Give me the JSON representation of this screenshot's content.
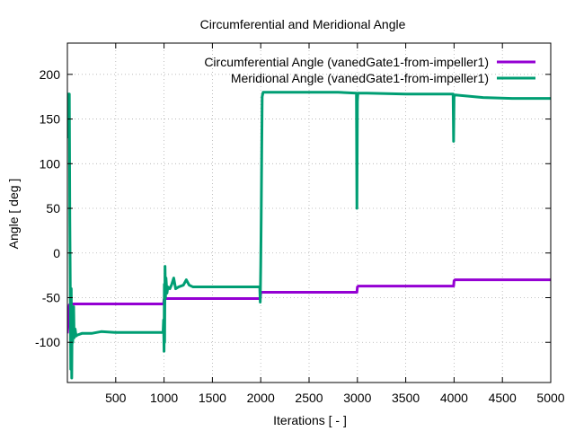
{
  "chart_data": {
    "type": "line",
    "title": "Circumferential and Meridional Angle",
    "xlabel": "Iterations [ - ]",
    "ylabel": "Angle [ deg ]",
    "xlim": [
      0,
      5000
    ],
    "ylim": [
      -145,
      235
    ],
    "xticks": [
      500,
      1000,
      1500,
      2000,
      2500,
      3000,
      3500,
      4000,
      4500,
      5000
    ],
    "yticks": [
      -100,
      -50,
      0,
      50,
      100,
      150,
      200
    ],
    "grid": true,
    "legend_position": "top-right",
    "series": [
      {
        "name": "Circumferential Angle (vanedGate1-from-impeller1)",
        "color": "#9400d3",
        "points": [
          [
            0,
            -90
          ],
          [
            10,
            -75
          ],
          [
            20,
            -58
          ],
          [
            40,
            -57
          ],
          [
            100,
            -57
          ],
          [
            300,
            -57
          ],
          [
            600,
            -57
          ],
          [
            900,
            -57
          ],
          [
            995,
            -57
          ],
          [
            1000,
            -52
          ],
          [
            1010,
            -51
          ],
          [
            1200,
            -51
          ],
          [
            1500,
            -51
          ],
          [
            1800,
            -51
          ],
          [
            1995,
            -51
          ],
          [
            2000,
            -45
          ],
          [
            2010,
            -44
          ],
          [
            2300,
            -44
          ],
          [
            2600,
            -44
          ],
          [
            2995,
            -44
          ],
          [
            3000,
            -38
          ],
          [
            3010,
            -37
          ],
          [
            3300,
            -37
          ],
          [
            3600,
            -37
          ],
          [
            3995,
            -37
          ],
          [
            4000,
            -31
          ],
          [
            4010,
            -30
          ],
          [
            4300,
            -30
          ],
          [
            4700,
            -30
          ],
          [
            5000,
            -30
          ]
        ]
      },
      {
        "name": "Meridional Angle (vanedGate1-from-impeller1)",
        "color": "#009e73",
        "points": [
          [
            0,
            170
          ],
          [
            3,
            178
          ],
          [
            6,
            130
          ],
          [
            10,
            178
          ],
          [
            20,
            178
          ],
          [
            25,
            40
          ],
          [
            30,
            -40
          ],
          [
            35,
            -130
          ],
          [
            40,
            -40
          ],
          [
            45,
            -140
          ],
          [
            50,
            -65
          ],
          [
            55,
            -100
          ],
          [
            60,
            -80
          ],
          [
            65,
            -60
          ],
          [
            70,
            -95
          ],
          [
            80,
            -85
          ],
          [
            90,
            -93
          ],
          [
            100,
            -92
          ],
          [
            150,
            -90
          ],
          [
            250,
            -90
          ],
          [
            350,
            -88
          ],
          [
            500,
            -89
          ],
          [
            700,
            -89
          ],
          [
            900,
            -89
          ],
          [
            990,
            -89
          ],
          [
            995,
            -75
          ],
          [
            1000,
            -110
          ],
          [
            1003,
            -35
          ],
          [
            1006,
            -100
          ],
          [
            1010,
            -15
          ],
          [
            1015,
            -50
          ],
          [
            1020,
            -28
          ],
          [
            1030,
            -45
          ],
          [
            1040,
            -38
          ],
          [
            1060,
            -40
          ],
          [
            1080,
            -35
          ],
          [
            1100,
            -28
          ],
          [
            1120,
            -40
          ],
          [
            1150,
            -38
          ],
          [
            1200,
            -36
          ],
          [
            1230,
            -30
          ],
          [
            1260,
            -36
          ],
          [
            1300,
            -38
          ],
          [
            1500,
            -38
          ],
          [
            1800,
            -38
          ],
          [
            1990,
            -38
          ],
          [
            1995,
            -55
          ],
          [
            2000,
            -15
          ],
          [
            2005,
            40
          ],
          [
            2010,
            110
          ],
          [
            2015,
            175
          ],
          [
            2025,
            180
          ],
          [
            2100,
            180
          ],
          [
            2500,
            180
          ],
          [
            2800,
            180
          ],
          [
            2990,
            179
          ],
          [
            2995,
            50
          ],
          [
            3000,
            170
          ],
          [
            3005,
            179
          ],
          [
            3100,
            179
          ],
          [
            3500,
            178
          ],
          [
            3990,
            178
          ],
          [
            3995,
            125
          ],
          [
            4000,
            175
          ],
          [
            4010,
            177
          ],
          [
            4300,
            174
          ],
          [
            4600,
            173
          ],
          [
            5000,
            173
          ]
        ]
      }
    ]
  }
}
